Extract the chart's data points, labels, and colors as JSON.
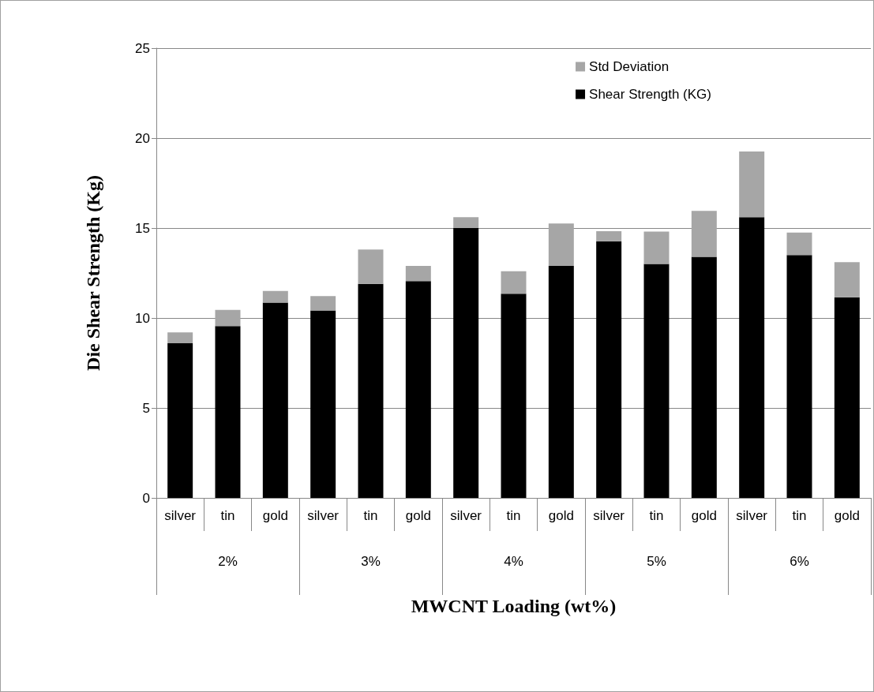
{
  "chart_data": {
    "type": "bar",
    "stacked": true,
    "categories": [
      "silver",
      "tin",
      "gold",
      "silver",
      "tin",
      "gold",
      "silver",
      "tin",
      "gold",
      "silver",
      "tin",
      "gold",
      "silver",
      "tin",
      "gold"
    ],
    "series": [
      {
        "name": "Shear Strength (KG)",
        "color": "#000000",
        "values": [
          8.6,
          9.55,
          10.85,
          10.42,
          11.9,
          12.05,
          15.0,
          11.35,
          12.9,
          14.27,
          13.0,
          13.4,
          15.6,
          13.5,
          11.15
        ]
      },
      {
        "name": "Std Deviation",
        "color": "#a6a6a6",
        "values": [
          0.6,
          0.9,
          0.65,
          0.8,
          1.9,
          0.85,
          0.6,
          1.25,
          2.35,
          0.55,
          1.8,
          2.55,
          3.65,
          1.25,
          1.95
        ]
      }
    ],
    "annotations": [
      "2%",
      "3%",
      "4%",
      "5%",
      "6%"
    ],
    "ylabel": "Die Shear Strength (Kg)",
    "xlabel": "MWCNT Loading (wt%)",
    "ylim": [
      0,
      25
    ],
    "yticks": [
      0,
      5,
      10,
      15,
      20,
      25
    ],
    "grid": "y",
    "legend": "top right"
  }
}
